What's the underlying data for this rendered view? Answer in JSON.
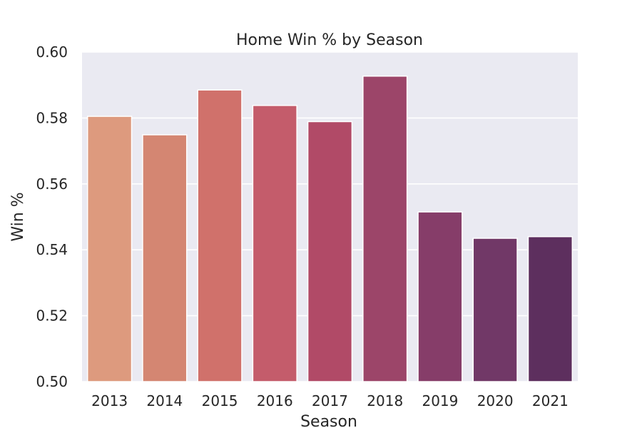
{
  "chart_data": {
    "type": "bar",
    "title": "Home Win % by Season",
    "xlabel": "Season",
    "ylabel": "Win %",
    "categories": [
      "2013",
      "2014",
      "2015",
      "2016",
      "2017",
      "2018",
      "2019",
      "2020",
      "2021"
    ],
    "values": [
      0.5805,
      0.5749,
      0.5885,
      0.5838,
      0.5789,
      0.5927,
      0.5515,
      0.5435,
      0.544
    ],
    "ylim": [
      0.5,
      0.6
    ],
    "yticks": [
      "0.50",
      "0.52",
      "0.54",
      "0.56",
      "0.58",
      "0.60"
    ],
    "grid": true,
    "colors": [
      "#dd9a7e",
      "#d48672",
      "#d0716b",
      "#c45c6b",
      "#b14a67",
      "#9c4569",
      "#863d69",
      "#713867",
      "#5d2f5e"
    ],
    "background": "#eaeaf2"
  }
}
